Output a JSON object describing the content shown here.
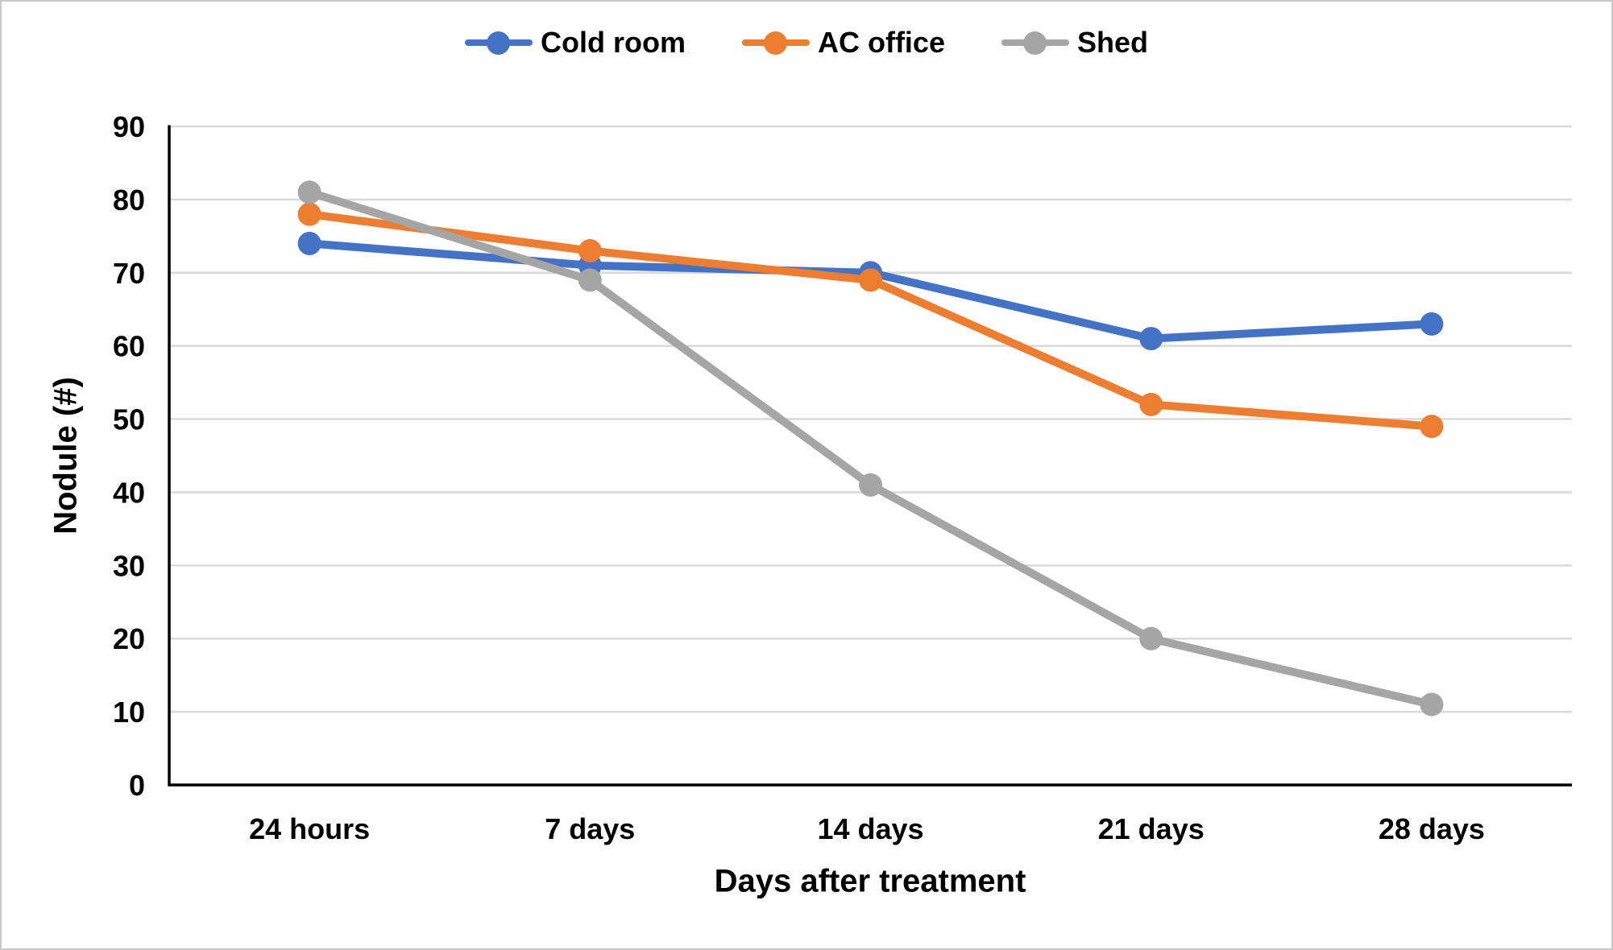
{
  "chart_data": {
    "type": "line",
    "title": "",
    "xlabel": "Days after treatment",
    "ylabel": "Nodule (#)",
    "categories": [
      "24 hours",
      "7 days",
      "14 days",
      "21 days",
      "28 days"
    ],
    "series": [
      {
        "name": "Cold room",
        "color": "#4472C4",
        "values": [
          74,
          71,
          70,
          61,
          63
        ]
      },
      {
        "name": "AC office",
        "color": "#ED7D31",
        "values": [
          78,
          73,
          69,
          52,
          49
        ]
      },
      {
        "name": "Shed",
        "color": "#A5A5A5",
        "values": [
          81,
          69,
          41,
          20,
          11
        ]
      }
    ],
    "ylim": [
      0,
      90
    ],
    "yticks": [
      0,
      10,
      20,
      30,
      40,
      50,
      60,
      70,
      80,
      90
    ],
    "grid": "horizontal",
    "legend_position": "top-center"
  },
  "colors": {
    "background": "#FFFFFF",
    "gridline": "#D9D9D9",
    "axis": "#000000",
    "text": "#000000",
    "border": "#C8C8C8"
  }
}
